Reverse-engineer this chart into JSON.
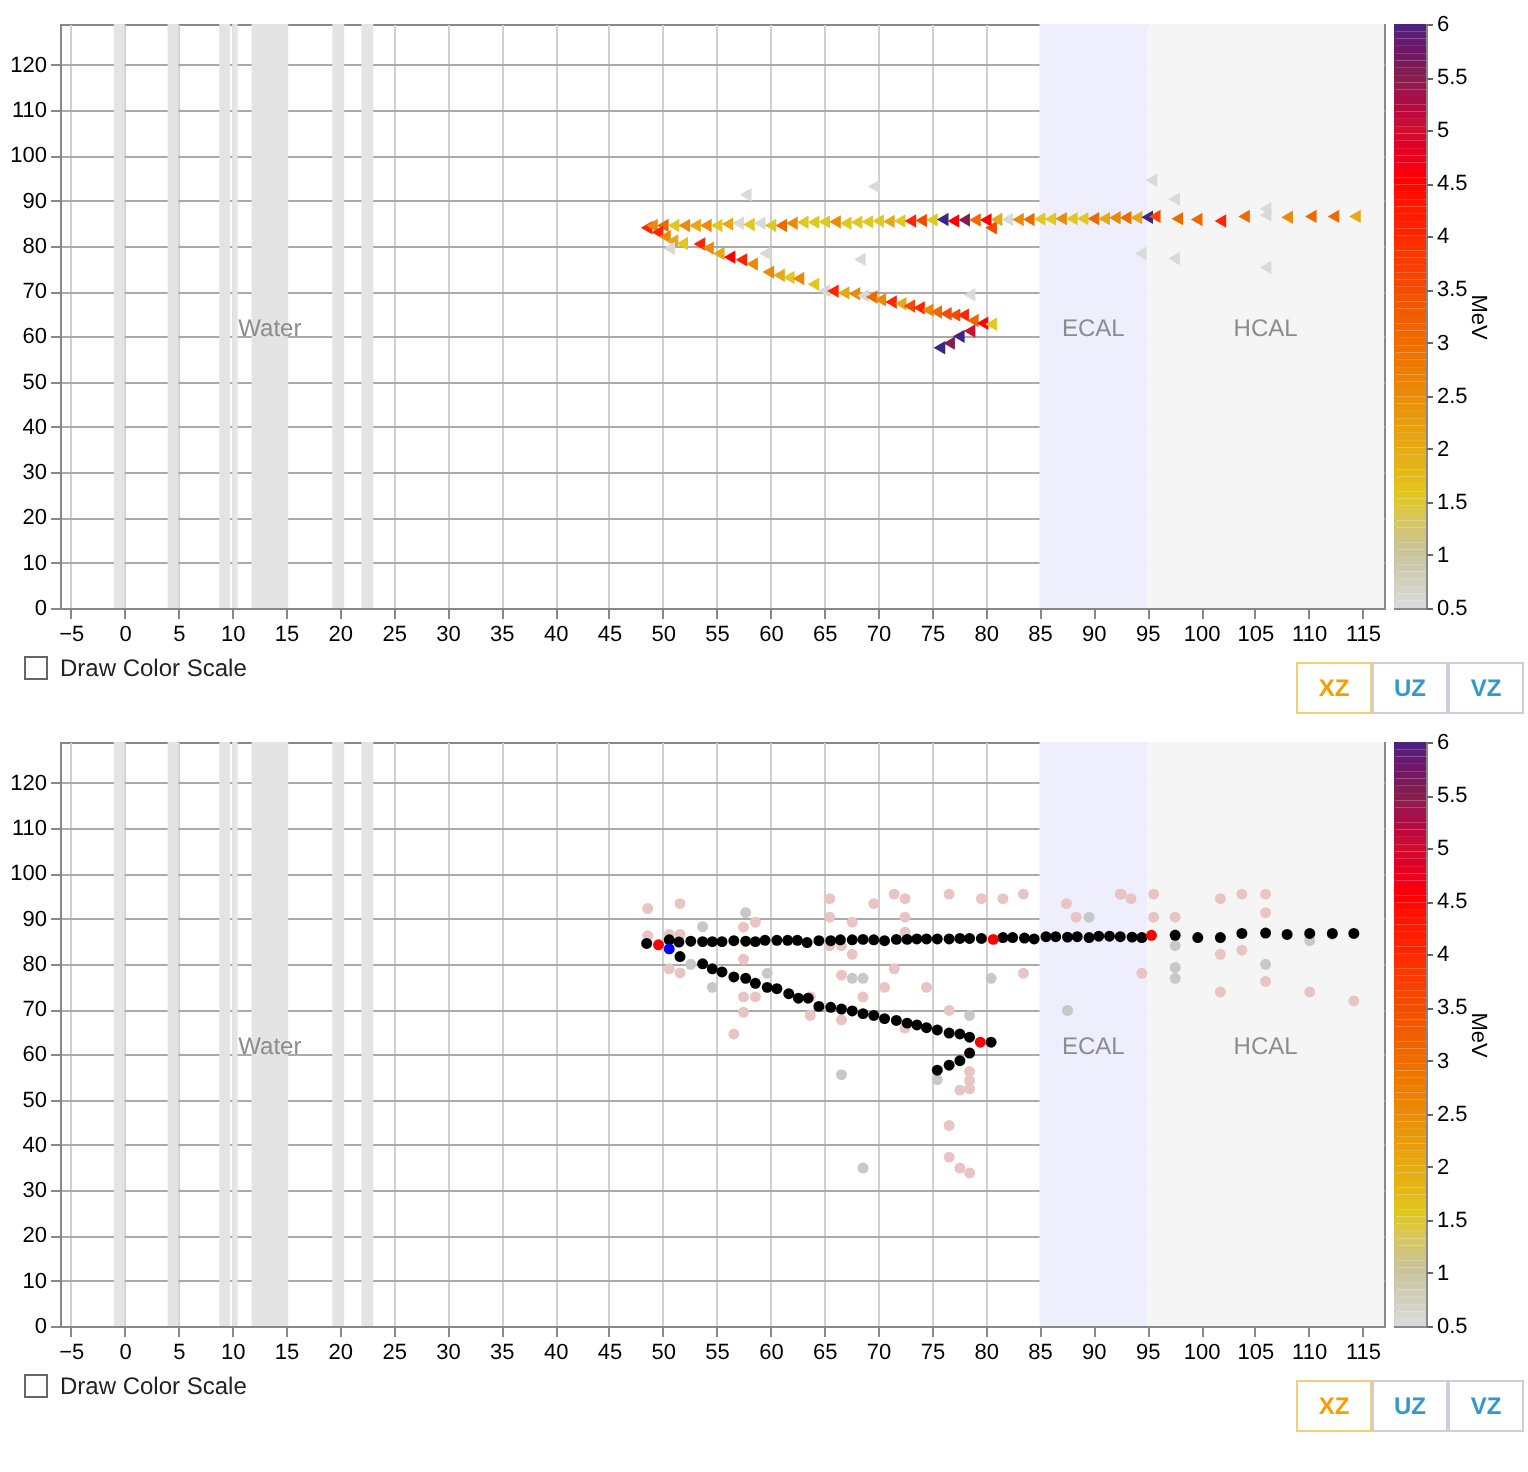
{
  "chart_data": [
    {
      "type": "scatter",
      "xlim": [
        -6,
        117
      ],
      "ylim": [
        0,
        129
      ],
      "xticks": [
        -5,
        0,
        5,
        10,
        15,
        20,
        25,
        30,
        35,
        40,
        45,
        50,
        55,
        60,
        65,
        70,
        75,
        80,
        85,
        90,
        95,
        100,
        105,
        110,
        115
      ],
      "yticks": [
        0,
        10,
        20,
        30,
        40,
        50,
        60,
        70,
        80,
        90,
        100,
        110,
        120
      ],
      "grid": true,
      "marker": "triangle",
      "clabel": "MeV",
      "clim": [
        0.5,
        6
      ],
      "cticks": [
        0.5,
        1,
        1.5,
        2,
        2.5,
        3,
        3.5,
        4,
        4.5,
        5,
        5.5,
        6
      ],
      "bands": [
        {
          "axis": "x",
          "from": -1,
          "to": 0,
          "color": "#e4e4e4"
        },
        {
          "axis": "x",
          "from": 4,
          "to": 5,
          "color": "#e4e4e4"
        },
        {
          "axis": "x",
          "from": 8.8,
          "to": 9.8,
          "color": "#e4e4e4"
        },
        {
          "axis": "x",
          "from": 10,
          "to": 10.5,
          "color": "#e4e4e4"
        },
        {
          "axis": "x",
          "from": 11.8,
          "to": 15.2,
          "label": "Water",
          "color": "#e4e4e4"
        },
        {
          "axis": "x",
          "from": 19.3,
          "to": 20.4,
          "color": "#e4e4e4"
        },
        {
          "axis": "x",
          "from": 22,
          "to": 23.1,
          "color": "#e4e4e4"
        },
        {
          "axis": "x",
          "from": 85,
          "to": 95,
          "label": "ECAL",
          "color": "#eeeefd"
        },
        {
          "axis": "x",
          "from": 95,
          "to": 117,
          "label": "HCAL",
          "color": "#f5f5f5"
        }
      ],
      "annotations": [
        "Draw Color Scale",
        "XZ",
        "UZ",
        "VZ"
      ],
      "series": [
        {
          "x": [
            48.5,
            49,
            50,
            51,
            52,
            53,
            54,
            55,
            56,
            57,
            58,
            59,
            60,
            61,
            62,
            63,
            64,
            65,
            66,
            67,
            68,
            69,
            70,
            71,
            72,
            73,
            74,
            75,
            76,
            77,
            78,
            79,
            80,
            80.5,
            81,
            82,
            83,
            84,
            85,
            86,
            87,
            88,
            89,
            90,
            91,
            92,
            93,
            94,
            95,
            95.7,
            97.8,
            99.6,
            101.8,
            104,
            106,
            108,
            110.2,
            112.3,
            114.3,
            49.5,
            50.2,
            50.9,
            51.8,
            53.4,
            54.2,
            55.2,
            56.2,
            57.3,
            58.3,
            59.8,
            60.8,
            61.7,
            62.6,
            64,
            65,
            65.8,
            66.8,
            67.8,
            68.6,
            69.4,
            70.2,
            71.2,
            72.1,
            72.9,
            73.8,
            74.6,
            75.4,
            76.3,
            77.1,
            77.9,
            78.8,
            79.7,
            80.5,
            75.7,
            76.6,
            77.5,
            78.5,
            57.7,
            69.6,
            50.6,
            59.5,
            68.3,
            78.5,
            95.4,
            97.5,
            94.4,
            97.5,
            106,
            106
          ],
          "values": [
            84,
            84.5,
            84.5,
            84.5,
            84.5,
            84.5,
            84.5,
            84.5,
            84.8,
            85,
            84.7,
            85,
            84.5,
            84.5,
            85,
            85.2,
            85.2,
            85.3,
            85.3,
            85,
            85.2,
            85.3,
            85.5,
            85.4,
            85.5,
            85.5,
            85.6,
            85.7,
            85.8,
            85.5,
            85.7,
            85.7,
            85.7,
            84,
            85.8,
            85.8,
            85.8,
            85.8,
            85.9,
            85.9,
            86,
            86,
            86,
            86,
            86,
            86.2,
            86.2,
            86.2,
            86.3,
            86.5,
            86,
            85.8,
            85.5,
            86.5,
            86.8,
            86.3,
            86.5,
            86.5,
            86.5,
            83,
            82,
            81.1,
            80.5,
            80.4,
            79.5,
            78.3,
            77.5,
            76.9,
            76,
            74.2,
            73.5,
            73,
            72.8,
            71.5,
            70.1,
            70,
            69.6,
            69.4,
            69,
            68.7,
            68.1,
            67.6,
            67.2,
            66.7,
            66.3,
            65.8,
            65.4,
            65,
            64.7,
            64.7,
            63.5,
            62.9,
            62.7,
            57.5,
            58.5,
            60,
            61.2,
            91.3,
            93.1,
            79.4,
            78.3,
            77,
            69.2,
            94.5,
            90.3,
            78.3,
            77.2,
            75.2,
            88.2
          ],
          "cvalues": [
            4,
            2.5,
            3,
            1.5,
            2.5,
            2,
            2.5,
            1.5,
            2,
            0.5,
            1.5,
            0.5,
            1.5,
            3,
            2.5,
            1.5,
            1.5,
            1.5,
            2.5,
            1.5,
            1.5,
            1.5,
            1.5,
            2,
            1.5,
            4,
            3.5,
            1.5,
            6,
            4.5,
            5.5,
            3,
            4.5,
            3.5,
            2,
            0.5,
            2.5,
            3,
            1.5,
            1.5,
            2.5,
            1.5,
            1.5,
            3,
            2,
            2.5,
            3,
            2,
            6,
            3.5,
            3,
            3,
            4,
            3,
            0.5,
            2.5,
            3,
            3,
            2,
            4,
            2.5,
            2,
            1.5,
            4,
            2.5,
            2,
            4.5,
            4,
            2.5,
            2.5,
            2,
            1.5,
            2.5,
            1.5,
            0.5,
            4,
            2,
            2.5,
            0.5,
            3,
            2.5,
            4,
            2,
            3.5,
            4,
            2.5,
            3,
            3.5,
            3.5,
            4,
            3,
            4.5,
            1.5,
            6,
            5.5,
            6,
            5,
            0.5,
            0.5,
            0.5,
            0.5,
            0.5,
            0.5,
            0.5,
            0.5,
            0.5,
            0.5,
            0.5,
            0.5
          ]
        }
      ]
    },
    {
      "type": "scatter",
      "xlim": [
        -6,
        117
      ],
      "ylim": [
        0,
        129
      ],
      "xticks": [
        -5,
        0,
        5,
        10,
        15,
        20,
        25,
        30,
        35,
        40,
        45,
        50,
        55,
        60,
        65,
        70,
        75,
        80,
        85,
        90,
        95,
        100,
        105,
        110,
        115
      ],
      "yticks": [
        0,
        10,
        20,
        30,
        40,
        50,
        60,
        70,
        80,
        90,
        100,
        110,
        120
      ],
      "grid": true,
      "marker": "circle",
      "clabel": "MeV",
      "clim": [
        0.5,
        6
      ],
      "cticks": [
        0.5,
        1,
        1.5,
        2,
        2.5,
        3,
        3.5,
        4,
        4.5,
        5,
        5.5,
        6
      ],
      "bands": [
        {
          "axis": "x",
          "from": -1,
          "to": 0,
          "color": "#e4e4e4"
        },
        {
          "axis": "x",
          "from": 4,
          "to": 5,
          "color": "#e4e4e4"
        },
        {
          "axis": "x",
          "from": 8.8,
          "to": 9.8,
          "color": "#e4e4e4"
        },
        {
          "axis": "x",
          "from": 10,
          "to": 10.5,
          "color": "#e4e4e4"
        },
        {
          "axis": "x",
          "from": 11.8,
          "to": 15.2,
          "label": "Water",
          "color": "#e4e4e4"
        },
        {
          "axis": "x",
          "from": 19.3,
          "to": 20.4,
          "color": "#e4e4e4"
        },
        {
          "axis": "x",
          "from": 22,
          "to": 23.1,
          "color": "#e4e4e4"
        },
        {
          "axis": "x",
          "from": 85,
          "to": 95,
          "label": "ECAL",
          "color": "#eeeefd"
        },
        {
          "axis": "x",
          "from": 95,
          "to": 117,
          "label": "HCAL",
          "color": "#f5f5f5"
        }
      ],
      "annotations": [
        "Draw Color Scale",
        "XZ",
        "UZ",
        "VZ"
      ],
      "series": [
        {
          "color": "#e8c4c4",
          "x": [
            48.6,
            48.6,
            50.6,
            51.6,
            51.6,
            50.6,
            51.6,
            57.5,
            58.6,
            57.5,
            57.5,
            58.6,
            57.5,
            56.6,
            65.5,
            65.5,
            65.5,
            66.6,
            67.6,
            67.6,
            66.6,
            68.6,
            66.6,
            63.7,
            63.7,
            69.6,
            70.6,
            71.5,
            72.5,
            72.5,
            72.5,
            71.5,
            72.5,
            74.5,
            76.6,
            76.6,
            79.6,
            81.6,
            83.5,
            83.5,
            87.5,
            88.4,
            92.5,
            93.5,
            95.6,
            95.6,
            94.5,
            76.6,
            76.6,
            77.6,
            78.5,
            77.6,
            78.5,
            78.5,
            78.5,
            92.6,
            97.6,
            97.6,
            101.8,
            101.8,
            101.8,
            103.8,
            103.8,
            106,
            106,
            106,
            110.1,
            112.2,
            114.2
          ],
          "values": [
            92.2,
            86.2,
            86.5,
            86.5,
            93.3,
            78.9,
            78,
            88.1,
            89.2,
            81,
            72.7,
            72.7,
            69.3,
            64.5,
            94.4,
            90.3,
            84,
            84,
            89.2,
            82.1,
            77.5,
            72.7,
            67.6,
            72.7,
            68.6,
            93.3,
            74.8,
            95.4,
            94.4,
            90.3,
            87,
            78.9,
            65.8,
            74.8,
            95.4,
            69.7,
            94.4,
            94.4,
            95.4,
            77.9,
            93.3,
            90.3,
            95.4,
            94.4,
            95.4,
            90.3,
            77.9,
            44.3,
            37.3,
            34.9,
            33.8,
            52.1,
            56.2,
            54.2,
            52.4,
            95.4,
            90.3,
            86.5,
            94.4,
            82.1,
            73.8,
            95.4,
            83,
            95.4,
            91.3,
            76.1,
            73.8,
            86.5,
            71.8
          ]
        },
        {
          "color": "#c8c8c8",
          "x": [
            53.7,
            57.7,
            52.6,
            54.6,
            59.7,
            67.6,
            68.6,
            70.6,
            80.5,
            87.6,
            89.6,
            66.6,
            75.5,
            68.6,
            78.5,
            97.6,
            97.6,
            97.6,
            110.1,
            106
          ],
          "values": [
            88.2,
            91.3,
            79.9,
            74.8,
            77.9,
            76.8,
            76.8,
            null,
            76.8,
            69.7,
            90.3,
            55.5,
            54.4,
            34.9,
            68.6,
            84,
            79.2,
            76.8,
            85.1,
            79.9
          ]
        },
        {
          "color": "#000000",
          "x": [
            48.5,
            50.6,
            51.5,
            52.6,
            53.7,
            54.6,
            55.5,
            56.6,
            57.7,
            58.6,
            59.5,
            60.6,
            61.6,
            62.5,
            63.4,
            64.5,
            65.6,
            66.5,
            67.6,
            68.6,
            69.6,
            70.6,
            71.7,
            72.7,
            73.6,
            74.5,
            75.5,
            76.6,
            77.6,
            78.5,
            79.6,
            81.6,
            82.5,
            83.6,
            84.5,
            85.6,
            86.5,
            87.6,
            88.5,
            89.6,
            90.5,
            91.5,
            92.5,
            93.6,
            94.5,
            97.6,
            99.7,
            101.8,
            103.8,
            106,
            108,
            110.1,
            112.2,
            114.2,
            51.6,
            53.7,
            54.6,
            55.5,
            56.6,
            57.7,
            58.6,
            59.7,
            60.6,
            61.7,
            62.6,
            63.5,
            64.5,
            65.6,
            66.6,
            67.6,
            68.6,
            69.6,
            70.6,
            71.7,
            72.7,
            73.6,
            74.5,
            75.5,
            76.6,
            77.6,
            78.5,
            80.5,
            75.5,
            76.6,
            77.6,
            78.5
          ],
          "values": [
            84.5,
            85.3,
            84.8,
            85,
            84.9,
            84.9,
            84.9,
            85.1,
            85,
            84.9,
            85.2,
            85.2,
            85.2,
            85.2,
            84.7,
            85.1,
            85.1,
            85.3,
            85.3,
            85.4,
            85.3,
            85.1,
            85.4,
            85.4,
            85.5,
            85.5,
            85.5,
            85.5,
            85.6,
            85.6,
            85.6,
            85.8,
            85.8,
            85.7,
            85.5,
            86,
            86,
            85.9,
            86,
            85.8,
            86.1,
            86.1,
            86,
            85.9,
            85.8,
            86.3,
            85.8,
            85.8,
            86.7,
            86.8,
            86.5,
            86.7,
            86.7,
            86.7,
            81.6,
            80,
            78.9,
            78.2,
            77.1,
            76.8,
            75.7,
            74.8,
            74.5,
            73.4,
            72.4,
            72.4,
            70.6,
            70.4,
            70,
            69.6,
            69,
            68.6,
            67.9,
            67.5,
            66.9,
            66.5,
            65.9,
            65.4,
            64.7,
            64.5,
            63.8,
            62.7,
            56.5,
            57.6,
            58.6,
            60.3
          ]
        },
        {
          "color": "#ff0000",
          "x": [
            49.6,
            79.5,
            80.7,
            95.4
          ],
          "values": [
            84.2,
            62.7,
            85.4,
            86.3
          ]
        },
        {
          "color": "#0000ff",
          "x": [
            50.6
          ],
          "values": [
            83.3
          ]
        }
      ]
    }
  ]
}
